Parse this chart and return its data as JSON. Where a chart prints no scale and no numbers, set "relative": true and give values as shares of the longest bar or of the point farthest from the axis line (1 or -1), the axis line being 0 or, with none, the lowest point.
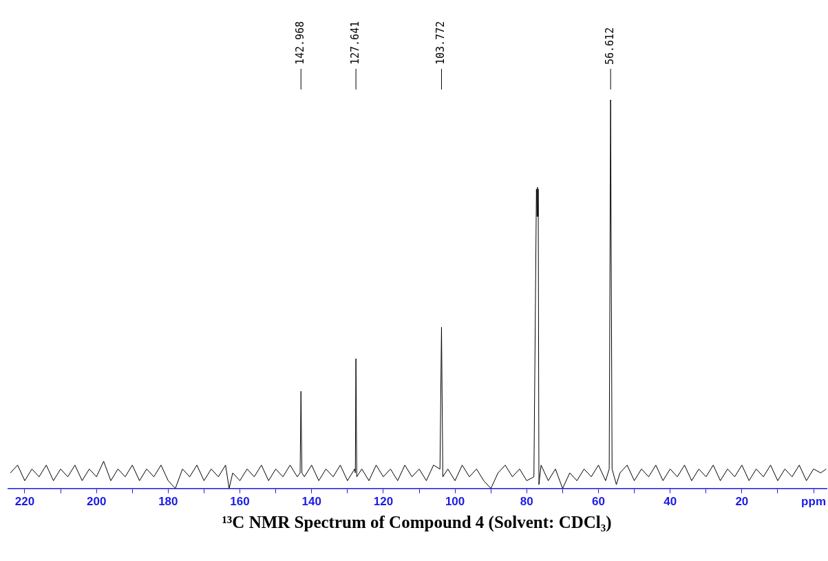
{
  "chart_data": {
    "type": "line",
    "title": "¹³C NMR Spectrum of Compound 4 (Solvent: CDCl₃)",
    "relative": true,
    "grid": false,
    "legend": false,
    "marker": "none",
    "line_style": "solid",
    "tick_labels": "x",
    "xlim": [
      224.6,
      -3.8
    ],
    "xticks": [
      220,
      {
        "value": 210,
        "label": null
      },
      200,
      {
        "value": 190,
        "label": null
      },
      180,
      {
        "value": 170,
        "label": null
      },
      160,
      {
        "value": 150,
        "label": null
      },
      140,
      {
        "value": 130,
        "label": null
      },
      120,
      {
        "value": 110,
        "label": null
      },
      100,
      {
        "value": 90,
        "label": null
      },
      80,
      {
        "value": 70,
        "label": null
      },
      60,
      {
        "value": 50,
        "label": null
      },
      40,
      {
        "value": 30,
        "label": null
      },
      20,
      {
        "value": 10,
        "label": null
      },
      {
        "value": 0,
        "label": "ppm"
      }
    ],
    "annotations": [
      {
        "text": "142.968",
        "x": 142.968
      },
      {
        "text": "127.641",
        "x": 127.641
      },
      {
        "text": "103.772",
        "x": 103.772
      },
      {
        "text": "56.612",
        "x": 56.612
      }
    ],
    "series": [
      {
        "color": "#000000",
        "x": [
          224,
          222,
          220,
          218,
          216,
          214,
          212,
          210,
          208,
          206,
          204,
          202,
          200,
          198,
          196,
          194,
          192,
          190,
          188,
          186,
          184,
          182,
          180,
          178,
          176,
          174,
          172,
          170,
          168,
          166,
          164,
          163,
          162,
          160,
          158,
          156,
          154,
          152,
          150,
          148,
          146,
          144,
          143.2,
          142.968,
          142.7,
          142,
          140,
          138,
          136,
          134,
          132,
          130,
          128,
          127.8,
          127.641,
          127.4,
          126,
          124,
          122,
          120,
          118,
          116,
          114,
          112,
          110,
          108,
          106,
          104.2,
          103.772,
          103.4,
          102,
          100,
          98,
          96,
          94,
          92,
          90,
          88,
          86,
          84,
          82,
          80,
          78,
          77.3,
          77.1,
          77.0,
          76.9,
          76.8,
          76.6,
          76,
          74,
          72,
          70,
          68,
          66,
          64,
          62,
          60,
          58,
          57,
          56.612,
          56.2,
          55,
          54,
          52,
          50,
          48,
          46,
          44,
          42,
          40,
          38,
          36,
          34,
          32,
          30,
          28,
          26,
          24,
          22,
          20,
          18,
          16,
          14,
          12,
          10,
          8,
          6,
          4,
          2,
          0,
          -2,
          -3.5
        ],
        "values": [
          0.04,
          0.06,
          0.02,
          0.05,
          0.03,
          0.06,
          0.02,
          0.05,
          0.03,
          0.06,
          0.02,
          0.05,
          0.03,
          0.07,
          0.02,
          0.05,
          0.03,
          0.06,
          0.02,
          0.05,
          0.03,
          0.06,
          0.02,
          0.0,
          0.05,
          0.03,
          0.06,
          0.02,
          0.05,
          0.03,
          0.06,
          0.0,
          0.04,
          0.02,
          0.05,
          0.03,
          0.06,
          0.02,
          0.05,
          0.03,
          0.06,
          0.03,
          0.04,
          0.25,
          0.04,
          0.03,
          0.06,
          0.02,
          0.05,
          0.03,
          0.06,
          0.02,
          0.05,
          0.04,
          0.334,
          0.03,
          0.05,
          0.02,
          0.06,
          0.03,
          0.05,
          0.02,
          0.06,
          0.03,
          0.05,
          0.02,
          0.06,
          0.05,
          0.415,
          0.03,
          0.05,
          0.02,
          0.06,
          0.03,
          0.05,
          0.02,
          0.0,
          0.04,
          0.06,
          0.03,
          0.05,
          0.02,
          0.03,
          0.77,
          0.7,
          0.775,
          0.7,
          0.77,
          0.01,
          0.06,
          0.02,
          0.05,
          0.0,
          0.04,
          0.02,
          0.05,
          0.03,
          0.06,
          0.02,
          0.05,
          1.0,
          0.05,
          0.01,
          0.04,
          0.06,
          0.02,
          0.05,
          0.03,
          0.06,
          0.02,
          0.05,
          0.03,
          0.06,
          0.02,
          0.05,
          0.03,
          0.06,
          0.02,
          0.05,
          0.03,
          0.06,
          0.02,
          0.05,
          0.03,
          0.06,
          0.02,
          0.05,
          0.03,
          0.06,
          0.02,
          0.05,
          0.04,
          0.05
        ]
      }
    ]
  }
}
